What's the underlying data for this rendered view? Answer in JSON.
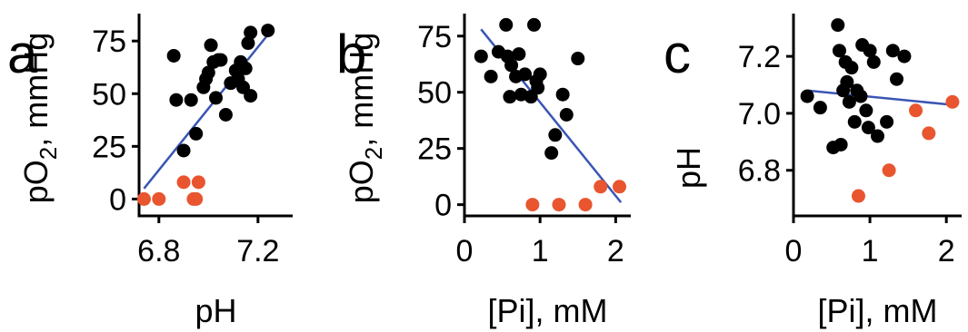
{
  "chart_data": [
    {
      "type": "scatter",
      "panel_label": "a",
      "xlabel": "pH",
      "ylabel_main": "pO",
      "ylabel_sub": "2",
      "ylabel_rest": ", mmHg",
      "xlim": [
        6.72,
        7.34
      ],
      "ylim": [
        -8,
        88
      ],
      "xticks": [
        {
          "v": 6.8,
          "label": "6.8"
        },
        {
          "v": 7.2,
          "label": "7.2"
        }
      ],
      "yticks": [
        {
          "v": 0,
          "label": "0"
        },
        {
          "v": 25,
          "label": "25"
        },
        {
          "v": 50,
          "label": "50"
        },
        {
          "v": 75,
          "label": "75"
        }
      ],
      "series": [
        {
          "color": "#000000",
          "points": [
            [
              6.86,
              68
            ],
            [
              6.87,
              47
            ],
            [
              6.9,
              23
            ],
            [
              6.93,
              47
            ],
            [
              6.95,
              31
            ],
            [
              6.98,
              53
            ],
            [
              6.99,
              57
            ],
            [
              7.0,
              60
            ],
            [
              7.01,
              73
            ],
            [
              7.02,
              65
            ],
            [
              7.03,
              48
            ],
            [
              7.04,
              66
            ],
            [
              7.05,
              66
            ],
            [
              7.07,
              40
            ],
            [
              7.09,
              55
            ],
            [
              7.11,
              61
            ],
            [
              7.12,
              57
            ],
            [
              7.13,
              65
            ],
            [
              7.14,
              53
            ],
            [
              7.15,
              62
            ],
            [
              7.16,
              74
            ],
            [
              7.17,
              49
            ],
            [
              7.17,
              79
            ],
            [
              7.24,
              80
            ]
          ]
        },
        {
          "color": "#e8552f",
          "points": [
            [
              6.74,
              0
            ],
            [
              6.8,
              0
            ],
            [
              6.9,
              8
            ],
            [
              6.94,
              0
            ],
            [
              6.95,
              0
            ],
            [
              6.96,
              8
            ]
          ]
        }
      ],
      "fit": {
        "x": [
          6.74,
          7.24
        ],
        "y": [
          5,
          78
        ]
      }
    },
    {
      "type": "scatter",
      "panel_label": "b",
      "xlabel": "[Pi], mM",
      "ylabel_main": "pO",
      "ylabel_sub": "2",
      "ylabel_rest": ", mmHg",
      "xlim": [
        0,
        2.2
      ],
      "ylim": [
        -5,
        85
      ],
      "xticks": [
        {
          "v": 0,
          "label": "0"
        },
        {
          "v": 1,
          "label": "1"
        },
        {
          "v": 2,
          "label": "2"
        }
      ],
      "yticks": [
        {
          "v": 0,
          "label": "0"
        },
        {
          "v": 25,
          "label": "25"
        },
        {
          "v": 50,
          "label": "50"
        },
        {
          "v": 75,
          "label": "75"
        }
      ],
      "series": [
        {
          "color": "#000000",
          "points": [
            [
              0.22,
              66
            ],
            [
              0.35,
              57
            ],
            [
              0.45,
              68
            ],
            [
              0.55,
              80
            ],
            [
              0.57,
              66
            ],
            [
              0.6,
              48
            ],
            [
              0.62,
              62
            ],
            [
              0.68,
              57
            ],
            [
              0.72,
              67
            ],
            [
              0.75,
              49
            ],
            [
              0.8,
              58
            ],
            [
              0.88,
              48
            ],
            [
              0.92,
              80
            ],
            [
              0.95,
              55
            ],
            [
              0.97,
              52
            ],
            [
              1.0,
              58
            ],
            [
              1.15,
              23
            ],
            [
              1.2,
              31
            ],
            [
              1.3,
              49
            ],
            [
              1.35,
              40
            ],
            [
              1.5,
              65
            ]
          ]
        },
        {
          "color": "#e8552f",
          "points": [
            [
              0.9,
              0
            ],
            [
              1.25,
              0
            ],
            [
              1.6,
              0
            ],
            [
              1.8,
              8
            ],
            [
              2.05,
              8
            ]
          ]
        }
      ],
      "fit": {
        "x": [
          0.22,
          2.07
        ],
        "y": [
          78,
          1
        ]
      }
    },
    {
      "type": "scatter",
      "panel_label": "c",
      "xlabel": "[Pi], mM",
      "ylabel_main": "pH",
      "ylabel_sub": "",
      "ylabel_rest": "",
      "xlim": [
        0,
        2.2
      ],
      "ylim": [
        6.64,
        7.35
      ],
      "xticks": [
        {
          "v": 0,
          "label": "0"
        },
        {
          "v": 1,
          "label": "1"
        },
        {
          "v": 2,
          "label": "2"
        }
      ],
      "yticks": [
        {
          "v": 6.8,
          "label": "6.8"
        },
        {
          "v": 7.0,
          "label": "7.0"
        },
        {
          "v": 7.2,
          "label": "7.2"
        }
      ],
      "series": [
        {
          "color": "#000000",
          "points": [
            [
              0.18,
              7.06
            ],
            [
              0.35,
              7.02
            ],
            [
              0.52,
              6.88
            ],
            [
              0.58,
              7.31
            ],
            [
              0.6,
              7.22
            ],
            [
              0.62,
              6.89
            ],
            [
              0.65,
              7.08
            ],
            [
              0.68,
              7.18
            ],
            [
              0.7,
              7.11
            ],
            [
              0.73,
              7.04
            ],
            [
              0.76,
              7.16
            ],
            [
              0.8,
              6.97
            ],
            [
              0.83,
              7.08
            ],
            [
              0.88,
              7.06
            ],
            [
              0.9,
              7.24
            ],
            [
              0.95,
              7.01
            ],
            [
              0.98,
              6.95
            ],
            [
              1.0,
              7.22
            ],
            [
              1.05,
              7.18
            ],
            [
              1.1,
              6.92
            ],
            [
              1.22,
              6.97
            ],
            [
              1.3,
              7.22
            ],
            [
              1.35,
              7.12
            ],
            [
              1.45,
              7.2
            ]
          ]
        },
        {
          "color": "#e8552f",
          "points": [
            [
              0.85,
              6.71
            ],
            [
              1.25,
              6.8
            ],
            [
              1.6,
              7.01
            ],
            [
              1.77,
              6.93
            ],
            [
              2.08,
              7.04
            ]
          ]
        }
      ],
      "fit": {
        "x": [
          0.18,
          2.07
        ],
        "y": [
          7.08,
          7.03
        ]
      }
    }
  ]
}
